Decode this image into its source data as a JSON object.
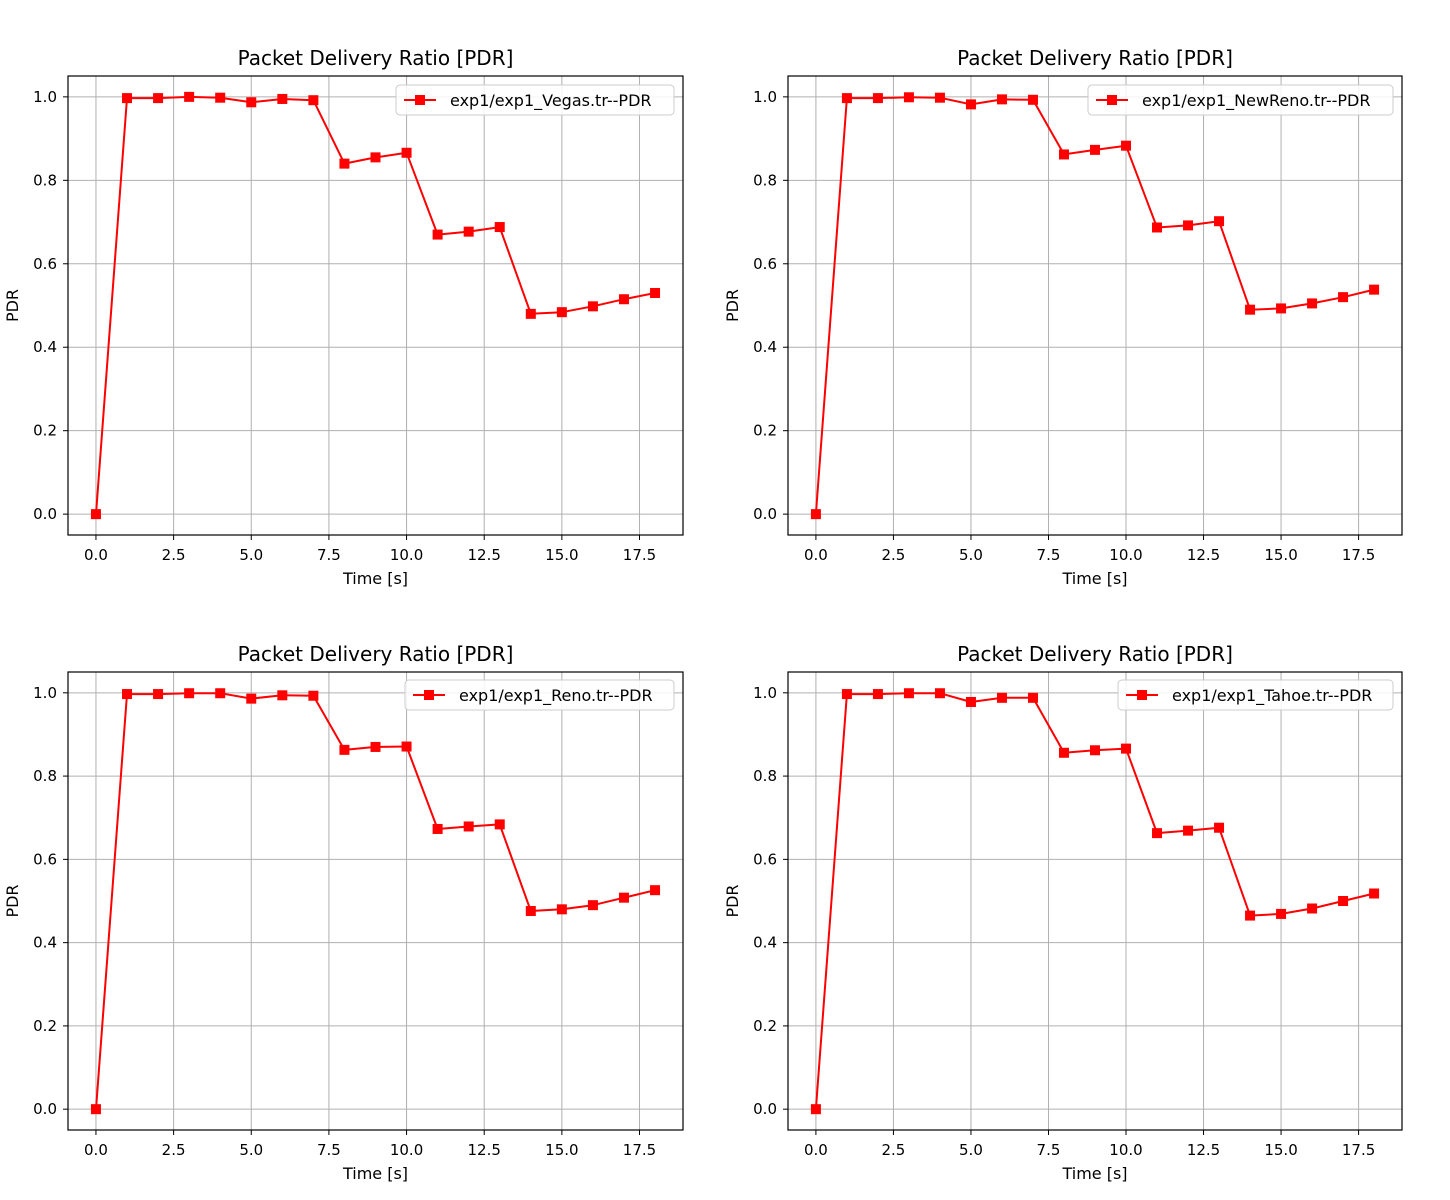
{
  "figure": {
    "background": "#ffffff",
    "line_color": "#ff0000",
    "grid_color": "#b0b0b0"
  },
  "chart_data": [
    {
      "type": "line",
      "title": "Packet Delivery Ratio [PDR]",
      "xlabel": "Time [s]",
      "ylabel": "PDR",
      "xlim": [
        -0.9,
        18.9
      ],
      "ylim": [
        -0.05,
        1.05
      ],
      "xticks": [
        "0.0",
        "2.5",
        "5.0",
        "7.5",
        "10.0",
        "12.5",
        "15.0",
        "17.5"
      ],
      "yticks": [
        "0.0",
        "0.2",
        "0.4",
        "0.6",
        "0.8",
        "1.0"
      ],
      "grid": true,
      "legend_position": "top-right",
      "series": [
        {
          "name": "exp1/exp1_Vegas.tr--PDR",
          "color": "#ff0000",
          "marker": "square",
          "x": [
            0,
            1,
            2,
            3,
            4,
            5,
            6,
            7,
            8,
            9,
            10,
            11,
            12,
            13,
            14,
            15,
            16,
            17,
            18
          ],
          "y": [
            0.0,
            0.997,
            0.997,
            1.0,
            0.998,
            0.987,
            0.995,
            0.992,
            0.84,
            0.855,
            0.866,
            0.67,
            0.677,
            0.688,
            0.48,
            0.484,
            0.498,
            0.515,
            0.53
          ]
        }
      ]
    },
    {
      "type": "line",
      "title": "Packet Delivery Ratio [PDR]",
      "xlabel": "Time [s]",
      "ylabel": "PDR",
      "xlim": [
        -0.9,
        18.9
      ],
      "ylim": [
        -0.05,
        1.05
      ],
      "xticks": [
        "0.0",
        "2.5",
        "5.0",
        "7.5",
        "10.0",
        "12.5",
        "15.0",
        "17.5"
      ],
      "yticks": [
        "0.0",
        "0.2",
        "0.4",
        "0.6",
        "0.8",
        "1.0"
      ],
      "grid": true,
      "legend_position": "top-right",
      "series": [
        {
          "name": "exp1/exp1_NewReno.tr--PDR",
          "color": "#ff0000",
          "marker": "square",
          "x": [
            0,
            1,
            2,
            3,
            4,
            5,
            6,
            7,
            8,
            9,
            10,
            11,
            12,
            13,
            14,
            15,
            16,
            17,
            18
          ],
          "y": [
            0.0,
            0.997,
            0.997,
            0.999,
            0.998,
            0.982,
            0.994,
            0.993,
            0.862,
            0.873,
            0.883,
            0.687,
            0.692,
            0.702,
            0.49,
            0.493,
            0.505,
            0.52,
            0.538
          ]
        }
      ]
    },
    {
      "type": "line",
      "title": "Packet Delivery Ratio [PDR]",
      "xlabel": "Time [s]",
      "ylabel": "PDR",
      "xlim": [
        -0.9,
        18.9
      ],
      "ylim": [
        -0.05,
        1.05
      ],
      "xticks": [
        "0.0",
        "2.5",
        "5.0",
        "7.5",
        "10.0",
        "12.5",
        "15.0",
        "17.5"
      ],
      "yticks": [
        "0.0",
        "0.2",
        "0.4",
        "0.6",
        "0.8",
        "1.0"
      ],
      "grid": true,
      "legend_position": "top-right",
      "series": [
        {
          "name": "exp1/exp1_Reno.tr--PDR",
          "color": "#ff0000",
          "marker": "square",
          "x": [
            0,
            1,
            2,
            3,
            4,
            5,
            6,
            7,
            8,
            9,
            10,
            11,
            12,
            13,
            14,
            15,
            16,
            17,
            18
          ],
          "y": [
            0.0,
            0.997,
            0.997,
            0.999,
            0.999,
            0.986,
            0.994,
            0.993,
            0.863,
            0.87,
            0.871,
            0.673,
            0.679,
            0.684,
            0.476,
            0.48,
            0.49,
            0.508,
            0.526
          ]
        }
      ]
    },
    {
      "type": "line",
      "title": "Packet Delivery Ratio [PDR]",
      "xlabel": "Time [s]",
      "ylabel": "PDR",
      "xlim": [
        -0.9,
        18.9
      ],
      "ylim": [
        -0.05,
        1.05
      ],
      "xticks": [
        "0.0",
        "2.5",
        "5.0",
        "7.5",
        "10.0",
        "12.5",
        "15.0",
        "17.5"
      ],
      "yticks": [
        "0.0",
        "0.2",
        "0.4",
        "0.6",
        "0.8",
        "1.0"
      ],
      "grid": true,
      "legend_position": "top-right",
      "series": [
        {
          "name": "exp1/exp1_Tahoe.tr--PDR",
          "color": "#ff0000",
          "marker": "square",
          "x": [
            0,
            1,
            2,
            3,
            4,
            5,
            6,
            7,
            8,
            9,
            10,
            11,
            12,
            13,
            14,
            15,
            16,
            17,
            18
          ],
          "y": [
            0.0,
            0.997,
            0.997,
            0.999,
            0.999,
            0.978,
            0.988,
            0.988,
            0.856,
            0.862,
            0.866,
            0.663,
            0.669,
            0.676,
            0.465,
            0.469,
            0.482,
            0.5,
            0.518
          ]
        }
      ]
    }
  ]
}
